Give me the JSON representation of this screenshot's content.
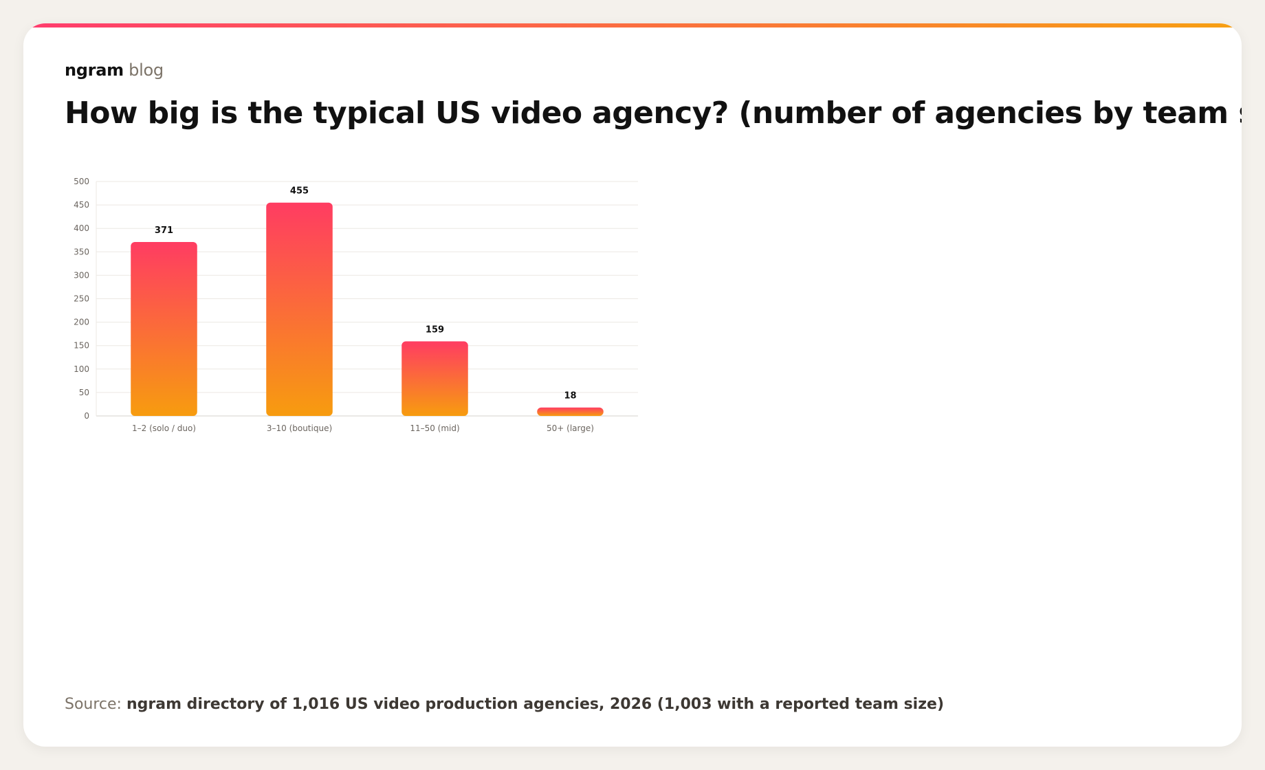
{
  "brand": {
    "name": "ngram",
    "sub": "blog"
  },
  "title": "How big is the typical US video agency? (number of agencies by team size)",
  "source": {
    "label": "Source:",
    "text": "ngram directory of 1,016 US video production agencies, 2026 (1,003 with a reported team size)"
  },
  "colors": {
    "gradient_top": "#ff3c62",
    "gradient_bottom": "#f79c0f",
    "label": "#111111",
    "tick": "#6b655f",
    "grid": "#ece8e3",
    "axis": "#d6d2cd"
  },
  "chart_data": {
    "type": "bar",
    "categories": [
      "1–2 (solo / duo)",
      "3–10 (boutique)",
      "11–50 (mid)",
      "50+ (large)"
    ],
    "values": [
      371,
      455,
      159,
      18
    ],
    "title": "",
    "xlabel": "",
    "ylabel": "",
    "ylim": [
      0,
      500
    ],
    "yticks": [
      0,
      50,
      100,
      150,
      200,
      250,
      300,
      350,
      400,
      450,
      500
    ],
    "grid": true,
    "legend": "none",
    "data_labels": true
  }
}
